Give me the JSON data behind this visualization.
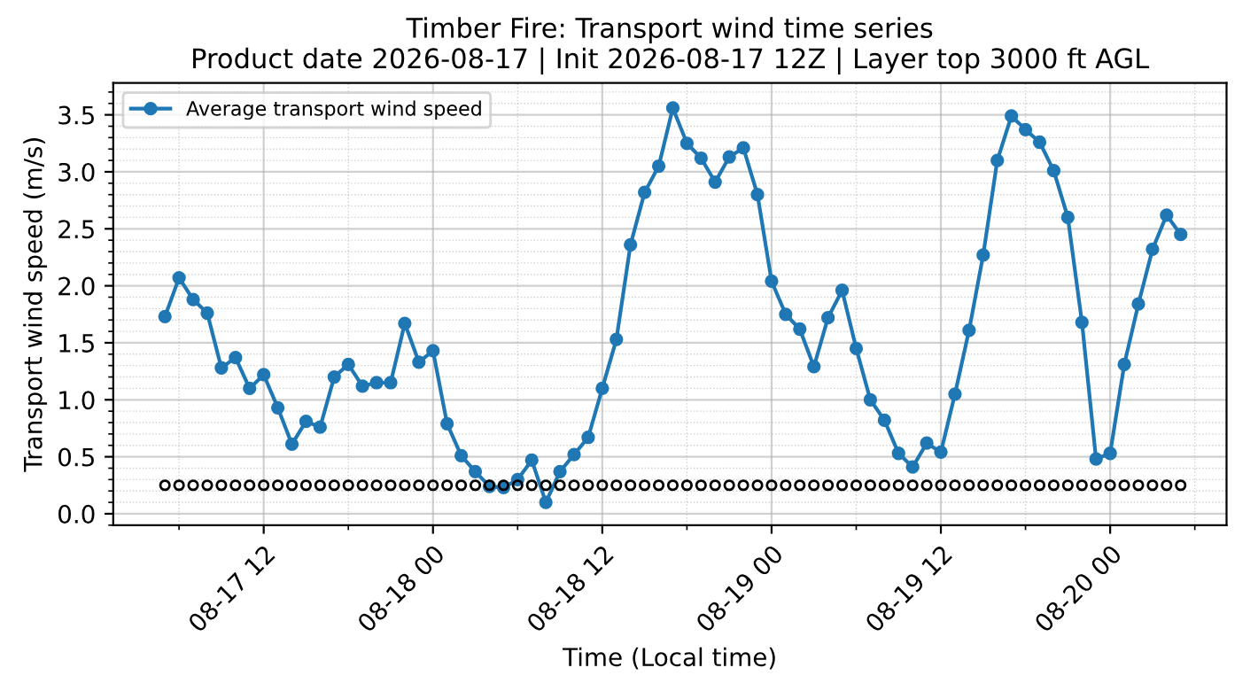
{
  "chart_data": {
    "type": "line",
    "title": "Timber Fire: Transport wind time series\nProduct date 2026-08-17 | Init 2026-08-17 12Z | Layer top 3000 ft AGL",
    "xlabel": "Time (Local time)",
    "ylabel": "Transport wind speed (m/s)",
    "x": [
      "2026-08-17T05:00",
      "2026-08-17T06:00",
      "2026-08-17T07:00",
      "2026-08-17T08:00",
      "2026-08-17T09:00",
      "2026-08-17T10:00",
      "2026-08-17T11:00",
      "2026-08-17T12:00",
      "2026-08-17T13:00",
      "2026-08-17T14:00",
      "2026-08-17T15:00",
      "2026-08-17T16:00",
      "2026-08-17T17:00",
      "2026-08-17T18:00",
      "2026-08-17T19:00",
      "2026-08-17T20:00",
      "2026-08-17T21:00",
      "2026-08-17T22:00",
      "2026-08-17T23:00",
      "2026-08-18T00:00",
      "2026-08-18T01:00",
      "2026-08-18T02:00",
      "2026-08-18T03:00",
      "2026-08-18T04:00",
      "2026-08-18T05:00",
      "2026-08-18T06:00",
      "2026-08-18T07:00",
      "2026-08-18T08:00",
      "2026-08-18T09:00",
      "2026-08-18T10:00",
      "2026-08-18T11:00",
      "2026-08-18T12:00",
      "2026-08-18T13:00",
      "2026-08-18T14:00",
      "2026-08-18T15:00",
      "2026-08-18T16:00",
      "2026-08-18T17:00",
      "2026-08-18T18:00",
      "2026-08-18T19:00",
      "2026-08-18T20:00",
      "2026-08-18T21:00",
      "2026-08-18T22:00",
      "2026-08-18T23:00",
      "2026-08-19T00:00",
      "2026-08-19T01:00",
      "2026-08-19T02:00",
      "2026-08-19T03:00",
      "2026-08-19T04:00",
      "2026-08-19T05:00",
      "2026-08-19T06:00",
      "2026-08-19T07:00",
      "2026-08-19T08:00",
      "2026-08-19T09:00",
      "2026-08-19T10:00",
      "2026-08-19T11:00",
      "2026-08-19T12:00",
      "2026-08-19T13:00",
      "2026-08-19T14:00",
      "2026-08-19T15:00",
      "2026-08-19T16:00",
      "2026-08-19T17:00",
      "2026-08-19T18:00",
      "2026-08-19T19:00",
      "2026-08-19T20:00",
      "2026-08-19T21:00",
      "2026-08-19T22:00",
      "2026-08-19T23:00",
      "2026-08-20T00:00",
      "2026-08-20T01:00",
      "2026-08-20T02:00",
      "2026-08-20T03:00",
      "2026-08-20T04:00",
      "2026-08-20T05:00"
    ],
    "series": [
      {
        "name": "Average transport wind speed",
        "color": "#1f77b4",
        "marker": "circle",
        "values": [
          1.73,
          2.07,
          1.88,
          1.76,
          1.28,
          1.37,
          1.1,
          1.22,
          0.93,
          0.61,
          0.81,
          0.76,
          1.2,
          1.31,
          1.12,
          1.15,
          1.15,
          1.67,
          1.33,
          1.43,
          0.79,
          0.51,
          0.37,
          0.24,
          0.23,
          0.3,
          0.47,
          0.1,
          0.37,
          0.52,
          0.67,
          1.1,
          1.53,
          2.36,
          2.82,
          3.05,
          3.56,
          3.25,
          3.12,
          2.91,
          3.13,
          3.21,
          2.8,
          2.04,
          1.75,
          1.62,
          1.29,
          1.72,
          1.96,
          1.45,
          1.0,
          0.82,
          0.53,
          0.41,
          0.62,
          0.54,
          1.05,
          1.61,
          2.27,
          3.1,
          3.49,
          3.37,
          3.26,
          3.01,
          2.6,
          1.68,
          0.48,
          0.53,
          1.31,
          1.84,
          2.32,
          2.62,
          2.45
        ]
      },
      {
        "type": "scatter",
        "color": "#000000",
        "marker": "circle",
        "values": [
          0.25,
          0.25,
          0.25,
          0.25,
          0.25,
          0.25,
          0.25,
          0.25,
          0.25,
          0.25,
          0.25,
          0.25,
          0.25,
          0.25,
          0.25,
          0.25,
          0.25,
          0.25,
          0.25,
          0.25,
          0.25,
          0.25,
          0.25,
          0.25,
          0.25,
          0.25,
          0.25,
          0.25,
          0.25,
          0.25,
          0.25,
          0.25,
          0.25,
          0.25,
          0.25,
          0.25,
          0.25,
          0.25,
          0.25,
          0.25,
          0.25,
          0.25,
          0.25,
          0.25,
          0.25,
          0.25,
          0.25,
          0.25,
          0.25,
          0.25,
          0.25,
          0.25,
          0.25,
          0.25,
          0.25,
          0.25,
          0.25,
          0.25,
          0.25,
          0.25,
          0.25,
          0.25,
          0.25,
          0.25,
          0.25,
          0.25,
          0.25,
          0.25,
          0.25,
          0.25,
          0.25,
          0.25,
          0.25
        ]
      }
    ],
    "xlim": [
      "2026-08-17T01:20",
      "2026-08-20T08:15"
    ],
    "xticks": [
      {
        "value": "2026-08-17T12:00",
        "label": "08-17 12"
      },
      {
        "value": "2026-08-18T00:00",
        "label": "08-18 00"
      },
      {
        "value": "2026-08-18T12:00",
        "label": "08-18 12"
      },
      {
        "value": "2026-08-19T00:00",
        "label": "08-19 00"
      },
      {
        "value": "2026-08-19T12:00",
        "label": "08-19 12"
      },
      {
        "value": "2026-08-20T00:00",
        "label": "08-20 00"
      }
    ],
    "ylim": [
      -0.1,
      3.78
    ],
    "yticks": [
      {
        "value": 0,
        "label": "0.0"
      },
      {
        "value": 0.5,
        "label": "0.5"
      },
      {
        "value": 1,
        "label": "1.0"
      },
      {
        "value": 1.5,
        "label": "1.5"
      },
      {
        "value": 2,
        "label": "2.0"
      },
      {
        "value": 2.5,
        "label": "2.5"
      },
      {
        "value": 3,
        "label": "3.0"
      },
      {
        "value": 3.5,
        "label": "3.5"
      }
    ],
    "grid": true,
    "legend": "top left",
    "line_style": "solid"
  }
}
